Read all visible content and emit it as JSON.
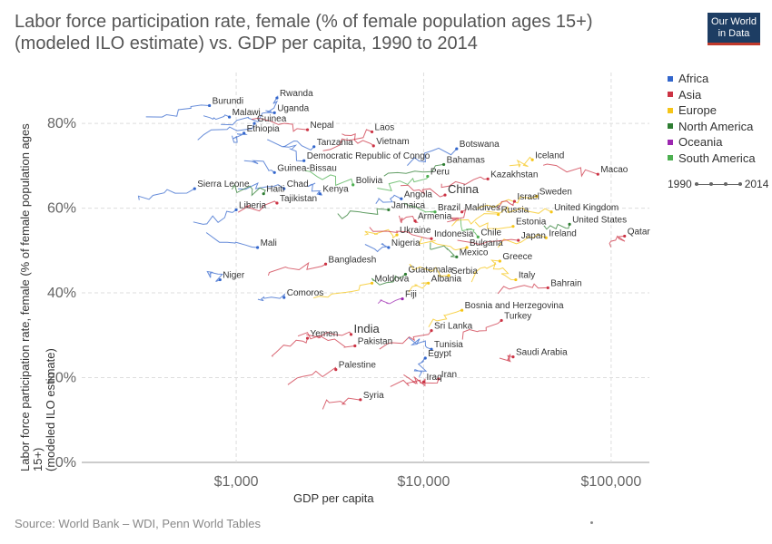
{
  "header": {
    "title_line1": "Labor force participation rate, female (% of female population ages 15+)",
    "title_line2": "(modeled ILO estimate) vs. GDP per capita, 1990 to 2014",
    "logo_line1": "Our World",
    "logo_line2": "in Data"
  },
  "footer": {
    "source": "Source: World Bank – WDI, Penn World Tables"
  },
  "timeline": {
    "start": "1990",
    "end": "2014"
  },
  "chart_data": {
    "type": "scatter",
    "title": "Labor force participation rate, female (% of female population ages 15+) (modeled ILO estimate) vs. GDP per capita, 1990 to 2014",
    "xlabel": "GDP per capita",
    "ylabel_line1": "Labor force participation rate, female (% of female population ages 15+)",
    "ylabel_line2": "(modeled ILO estimate)",
    "x_scale": "log",
    "xlim": [
      150,
      160000
    ],
    "ylim": [
      0,
      92
    ],
    "x_ticks": [
      1000,
      10000,
      100000
    ],
    "x_tick_labels": [
      "$1,000",
      "$10,000",
      "$100,000"
    ],
    "y_ticks": [
      0,
      20,
      40,
      60,
      80
    ],
    "y_tick_labels": [
      "0%",
      "20%",
      "40%",
      "60%",
      "80%"
    ],
    "grid": true,
    "legend_position": "right",
    "legend": [
      {
        "name": "Africa",
        "color": "#3366cc"
      },
      {
        "name": "Asia",
        "color": "#cc3344"
      },
      {
        "name": "Europe",
        "color": "#f5c518"
      },
      {
        "name": "North America",
        "color": "#2e7d32"
      },
      {
        "name": "Oceania",
        "color": "#9c27b0"
      },
      {
        "name": "South America",
        "color": "#4caf50"
      }
    ],
    "labels": [
      {
        "name": "Rwanda",
        "region": "Africa",
        "x": 1650,
        "y": 86
      },
      {
        "name": "Burundi",
        "region": "Africa",
        "x": 720,
        "y": 84.2
      },
      {
        "name": "Uganda",
        "region": "Africa",
        "x": 1600,
        "y": 82.5
      },
      {
        "name": "Malawi",
        "region": "Africa",
        "x": 920,
        "y": 81.5
      },
      {
        "name": "Guinea",
        "region": "Africa",
        "x": 1250,
        "y": 80
      },
      {
        "name": "Nepal",
        "region": "Asia",
        "x": 2400,
        "y": 78.5
      },
      {
        "name": "Laos",
        "region": "Asia",
        "x": 5300,
        "y": 78
      },
      {
        "name": "Ethiopia",
        "region": "Africa",
        "x": 1100,
        "y": 77.7
      },
      {
        "name": "Tanzania",
        "region": "Africa",
        "x": 2600,
        "y": 74.5
      },
      {
        "name": "Vietnam",
        "region": "Asia",
        "x": 5400,
        "y": 74.7
      },
      {
        "name": "Botswana",
        "region": "Africa",
        "x": 15000,
        "y": 74
      },
      {
        "name": "Iceland",
        "region": "Europe",
        "x": 38000,
        "y": 71.4
      },
      {
        "name": "Democratic Republic of Congo",
        "region": "Africa",
        "x": 2300,
        "y": 71.2
      },
      {
        "name": "Bahamas",
        "region": "North America",
        "x": 12800,
        "y": 70.3
      },
      {
        "name": "Guinea-Bissau",
        "region": "Africa",
        "x": 1600,
        "y": 68.4
      },
      {
        "name": "Macao",
        "region": "Asia",
        "x": 85000,
        "y": 68
      },
      {
        "name": "Peru",
        "region": "South America",
        "x": 10500,
        "y": 67.5
      },
      {
        "name": "Kazakhstan",
        "region": "Asia",
        "x": 22000,
        "y": 66.9
      },
      {
        "name": "Bolivia",
        "region": "South America",
        "x": 4200,
        "y": 65.5
      },
      {
        "name": "Sierra Leone",
        "region": "Africa",
        "x": 600,
        "y": 64.6
      },
      {
        "name": "Chad",
        "region": "Africa",
        "x": 1800,
        "y": 64.6
      },
      {
        "name": "Haiti",
        "region": "North America",
        "x": 1400,
        "y": 63.4
      },
      {
        "name": "Kenya",
        "region": "Africa",
        "x": 2800,
        "y": 63.4
      },
      {
        "name": "China",
        "region": "Asia",
        "x": 13000,
        "y": 63.1
      },
      {
        "name": "Sweden",
        "region": "Europe",
        "x": 40000,
        "y": 62.8
      },
      {
        "name": "Angola",
        "region": "Africa",
        "x": 7600,
        "y": 62.2
      },
      {
        "name": "Israel",
        "region": "Asia",
        "x": 30500,
        "y": 61.6
      },
      {
        "name": "Tajikistan",
        "region": "Asia",
        "x": 1650,
        "y": 61.2
      },
      {
        "name": "Liberia",
        "region": "Africa",
        "x": 1000,
        "y": 59.6
      },
      {
        "name": "Jamaica",
        "region": "North America",
        "x": 6500,
        "y": 59.6
      },
      {
        "name": "Brazil",
        "region": "South America",
        "x": 11500,
        "y": 59.1
      },
      {
        "name": "Maldives",
        "region": "Asia",
        "x": 16000,
        "y": 59.1
      },
      {
        "name": "United Kingdom",
        "region": "Europe",
        "x": 48000,
        "y": 59.1
      },
      {
        "name": "Russia",
        "region": "Europe",
        "x": 25000,
        "y": 58.5
      },
      {
        "name": "Armenia",
        "region": "Asia",
        "x": 9000,
        "y": 57
      },
      {
        "name": "United States",
        "region": "North America",
        "x": 60000,
        "y": 56.2
      },
      {
        "name": "Estonia",
        "region": "Europe",
        "x": 30000,
        "y": 55.7
      },
      {
        "name": "Ukraine",
        "region": "Europe",
        "x": 7200,
        "y": 53.7
      },
      {
        "name": "Qatar",
        "region": "Asia",
        "x": 118000,
        "y": 53.4
      },
      {
        "name": "Chile",
        "region": "South America",
        "x": 19500,
        "y": 53.2
      },
      {
        "name": "Ireland",
        "region": "Europe",
        "x": 45000,
        "y": 53
      },
      {
        "name": "Indonesia",
        "region": "Asia",
        "x": 11000,
        "y": 52.8
      },
      {
        "name": "Japan",
        "region": "Asia",
        "x": 32000,
        "y": 52.4
      },
      {
        "name": "Nigeria",
        "region": "Africa",
        "x": 6500,
        "y": 50.7
      },
      {
        "name": "Mali",
        "region": "Africa",
        "x": 1300,
        "y": 50.7
      },
      {
        "name": "Bulgaria",
        "region": "Europe",
        "x": 17000,
        "y": 50.7
      },
      {
        "name": "Mexico",
        "region": "North America",
        "x": 15000,
        "y": 48.5
      },
      {
        "name": "Greece",
        "region": "Europe",
        "x": 25500,
        "y": 47.5
      },
      {
        "name": "Bangladesh",
        "region": "Asia",
        "x": 3000,
        "y": 46.8
      },
      {
        "name": "Guatemala",
        "region": "North America",
        "x": 8000,
        "y": 44.4
      },
      {
        "name": "Serbia",
        "region": "Europe",
        "x": 13600,
        "y": 44.1
      },
      {
        "name": "Niger",
        "region": "Africa",
        "x": 820,
        "y": 43.1
      },
      {
        "name": "Italy",
        "region": "Europe",
        "x": 31000,
        "y": 43.1
      },
      {
        "name": "Moldova",
        "region": "Europe",
        "x": 5300,
        "y": 42.3
      },
      {
        "name": "Albania",
        "region": "Europe",
        "x": 10600,
        "y": 42.3
      },
      {
        "name": "Bahrain",
        "region": "Asia",
        "x": 46000,
        "y": 41.2
      },
      {
        "name": "Comoros",
        "region": "Africa",
        "x": 1800,
        "y": 38.9
      },
      {
        "name": "Fiji",
        "region": "Oceania",
        "x": 7700,
        "y": 38.6
      },
      {
        "name": "Bosnia and Herzegovina",
        "region": "Europe",
        "x": 16000,
        "y": 35.9
      },
      {
        "name": "Turkey",
        "region": "Asia",
        "x": 26000,
        "y": 33.5
      },
      {
        "name": "Sri Lanka",
        "region": "Asia",
        "x": 11000,
        "y": 31.1
      },
      {
        "name": "India",
        "region": "Asia",
        "x": 4100,
        "y": 30.2
      },
      {
        "name": "Yemen",
        "region": "Asia",
        "x": 2400,
        "y": 29.3
      },
      {
        "name": "Pakistan",
        "region": "Asia",
        "x": 4300,
        "y": 27.5
      },
      {
        "name": "Tunisia",
        "region": "Africa",
        "x": 11000,
        "y": 26.7
      },
      {
        "name": "Egypt",
        "region": "Africa",
        "x": 10200,
        "y": 24.6
      },
      {
        "name": "Saudi Arabia",
        "region": "Asia",
        "x": 30000,
        "y": 24.9
      },
      {
        "name": "Palestine",
        "region": "Asia",
        "x": 3400,
        "y": 21.9
      },
      {
        "name": "Iran",
        "region": "Asia",
        "x": 12000,
        "y": 19.7
      },
      {
        "name": "Iraq",
        "region": "Asia",
        "x": 10000,
        "y": 19
      },
      {
        "name": "Syria",
        "region": "Asia",
        "x": 4600,
        "y": 14.8
      }
    ]
  }
}
